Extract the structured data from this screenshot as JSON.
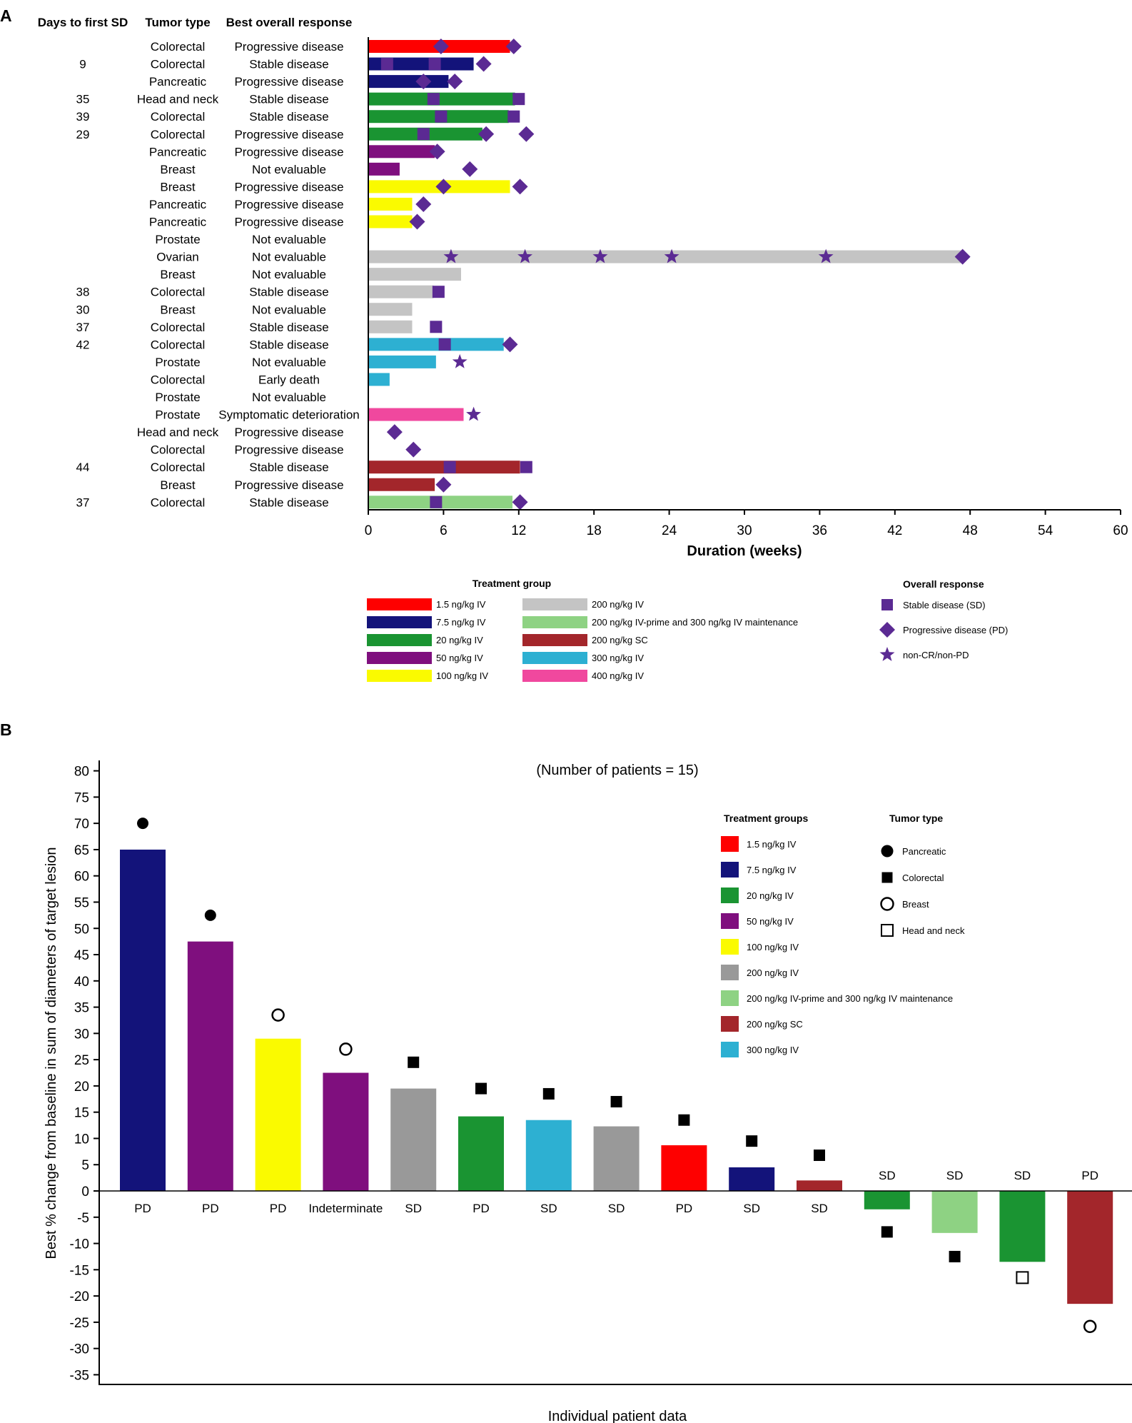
{
  "panels": {
    "a": "A",
    "b": "B"
  },
  "chart_data": [
    {
      "type": "swimmer",
      "panel": "A",
      "columns": {
        "days": "Days to first SD",
        "tumor": "Tumor type",
        "response": "Best overall response"
      },
      "xlabel": "Duration (weeks)",
      "xlim": [
        0,
        60
      ],
      "xticks": [
        "0",
        "6",
        "12",
        "18",
        "24",
        "30",
        "36",
        "42",
        "48",
        "54",
        "60"
      ],
      "patients": [
        {
          "days": "",
          "tumor": "Colorectal",
          "response": "Progressive disease",
          "dur": 11.3,
          "color": "#fe0000",
          "sd": [],
          "pd": [
            5.8,
            11.6
          ],
          "star": []
        },
        {
          "days": "9",
          "tumor": "Colorectal",
          "response": "Stable disease",
          "dur": 8.4,
          "color": "#13137a",
          "sd": [
            1.5,
            5.3
          ],
          "pd": [
            9.2
          ],
          "star": []
        },
        {
          "days": "",
          "tumor": "Pancreatic",
          "response": "Progressive disease",
          "dur": 6.4,
          "color": "#13137a",
          "sd": [],
          "pd": [
            4.4,
            6.9
          ],
          "star": []
        },
        {
          "days": "35",
          "tumor": "Head and neck",
          "response": "Stable disease",
          "dur": 11.7,
          "color": "#1a9432",
          "sd": [
            5.2,
            12.0
          ],
          "pd": [],
          "star": []
        },
        {
          "days": "39",
          "tumor": "Colorectal",
          "response": "Stable disease",
          "dur": 11.2,
          "color": "#1a9432",
          "sd": [
            5.8,
            11.6
          ],
          "pd": [],
          "star": []
        },
        {
          "days": "29",
          "tumor": "Colorectal",
          "response": "Progressive disease",
          "dur": 9.1,
          "color": "#1a9432",
          "sd": [
            4.4
          ],
          "pd": [
            9.4,
            12.6
          ],
          "star": []
        },
        {
          "days": "",
          "tumor": "Pancreatic",
          "response": "Progressive disease",
          "dur": 5.3,
          "color": "#7f0f7e",
          "sd": [],
          "pd": [
            5.5
          ],
          "star": []
        },
        {
          "days": "",
          "tumor": "Breast",
          "response": "Not evaluable",
          "dur": 2.5,
          "color": "#7f0f7e",
          "sd": [],
          "pd": [
            8.1
          ],
          "star": []
        },
        {
          "days": "",
          "tumor": "Breast",
          "response": "Progressive disease",
          "dur": 11.3,
          "color": "#fafa00",
          "sd": [],
          "pd": [
            6.0,
            12.1
          ],
          "star": []
        },
        {
          "days": "",
          "tumor": "Pancreatic",
          "response": "Progressive disease",
          "dur": 3.5,
          "color": "#fafa00",
          "sd": [],
          "pd": [
            4.4
          ],
          "star": []
        },
        {
          "days": "",
          "tumor": "Pancreatic",
          "response": "Progressive disease",
          "dur": 3.5,
          "color": "#fafa00",
          "sd": [],
          "pd": [
            3.9
          ],
          "star": []
        },
        {
          "days": "",
          "tumor": "Prostate",
          "response": "Not evaluable",
          "dur": 0,
          "color": "#c4c4c4",
          "sd": [],
          "pd": [],
          "star": []
        },
        {
          "days": "",
          "tumor": "Ovarian",
          "response": "Not evaluable",
          "dur": 47.4,
          "color": "#c4c4c4",
          "sd": [],
          "pd": [
            47.4
          ],
          "star": [
            6.6,
            12.5,
            18.5,
            24.2,
            36.5
          ]
        },
        {
          "days": "",
          "tumor": "Breast",
          "response": "Not evaluable",
          "dur": 7.4,
          "color": "#c4c4c4",
          "sd": [],
          "pd": [],
          "star": []
        },
        {
          "days": "38",
          "tumor": "Colorectal",
          "response": "Stable disease",
          "dur": 5.2,
          "color": "#c4c4c4",
          "sd": [
            5.6
          ],
          "pd": [],
          "star": []
        },
        {
          "days": "30",
          "tumor": "Breast",
          "response": "Not evaluable",
          "dur": 3.5,
          "color": "#c4c4c4",
          "sd": [],
          "pd": [],
          "star": []
        },
        {
          "days": "37",
          "tumor": "Colorectal",
          "response": "Stable disease",
          "dur": 3.5,
          "color": "#c4c4c4",
          "sd": [
            5.4
          ],
          "pd": [],
          "star": []
        },
        {
          "days": "42",
          "tumor": "Colorectal",
          "response": "Stable disease",
          "dur": 10.8,
          "color": "#2db0d2",
          "sd": [
            6.1
          ],
          "pd": [
            11.3
          ],
          "star": []
        },
        {
          "days": "",
          "tumor": "Prostate",
          "response": "Not evaluable",
          "dur": 5.4,
          "color": "#2db0d2",
          "sd": [],
          "pd": [],
          "star": [
            7.3
          ]
        },
        {
          "days": "",
          "tumor": "Colorectal",
          "response": "Early death",
          "dur": 1.7,
          "color": "#2db0d2",
          "sd": [],
          "pd": [],
          "star": []
        },
        {
          "days": "",
          "tumor": "Prostate",
          "response": "Not evaluable",
          "dur": 0,
          "color": "#c4c4c4",
          "sd": [],
          "pd": [],
          "star": []
        },
        {
          "days": "",
          "tumor": "Prostate",
          "response": "Symptomatic deterioration",
          "dur": 7.6,
          "color": "#f0489e",
          "sd": [],
          "pd": [],
          "star": [
            8.4
          ]
        },
        {
          "days": "",
          "tumor": "Head and neck",
          "response": "Progressive disease",
          "dur": 0,
          "color": "#c4c4c4",
          "sd": [],
          "pd": [
            2.1
          ],
          "star": []
        },
        {
          "days": "",
          "tumor": "Colorectal",
          "response": "Progressive disease",
          "dur": 0,
          "color": "#c4c4c4",
          "sd": [],
          "pd": [
            3.6
          ],
          "star": []
        },
        {
          "days": "44",
          "tumor": "Colorectal",
          "response": "Stable disease",
          "dur": 12.1,
          "color": "#a3262b",
          "sd": [
            6.5,
            12.6
          ],
          "pd": [],
          "star": []
        },
        {
          "days": "",
          "tumor": "Breast",
          "response": "Progressive disease",
          "dur": 5.3,
          "color": "#a3262b",
          "sd": [],
          "pd": [
            6.0
          ],
          "star": []
        },
        {
          "days": "37",
          "tumor": "Colorectal",
          "response": "Stable disease",
          "dur": 11.5,
          "color": "#8ed283",
          "sd": [
            5.4
          ],
          "pd": [
            12.1
          ],
          "star": []
        }
      ],
      "legend_treatment": {
        "title": "Treatment group",
        "items": [
          {
            "label": "1.5 ng/kg IV",
            "color": "#fe0000"
          },
          {
            "label": "7.5 ng/kg IV",
            "color": "#13137a"
          },
          {
            "label": "20 ng/kg IV",
            "color": "#1a9432"
          },
          {
            "label": "50 ng/kg IV",
            "color": "#7f0f7e"
          },
          {
            "label": "100 ng/kg IV",
            "color": "#fafa00"
          },
          {
            "label": "200 ng/kg IV",
            "color": "#c4c4c4"
          },
          {
            "label": "200 ng/kg IV-prime and 300 ng/kg IV maintenance",
            "color": "#8ed283"
          },
          {
            "label": "200 ng/kg SC",
            "color": "#a3262b"
          },
          {
            "label": "300 ng/kg IV",
            "color": "#2db0d2"
          },
          {
            "label": "400 ng/kg IV",
            "color": "#f0489e"
          }
        ]
      },
      "legend_response": {
        "title": "Overall response",
        "items": [
          {
            "label": "Stable disease (SD)",
            "marker": "square"
          },
          {
            "label": "Progressive disease (PD)",
            "marker": "diamond"
          },
          {
            "label": "non-CR/non-PD",
            "marker": "star"
          }
        ]
      },
      "marker_color": "#5b2a93"
    },
    {
      "type": "bar",
      "panel": "B",
      "title": "(Number of patients = 15)",
      "ylabel": "Best % change from baseline in sum of diameters of target lesion",
      "xlabel": "Individual patient data",
      "ylim": [
        -35,
        80
      ],
      "yticks": [
        "80",
        "75",
        "70",
        "65",
        "60",
        "55",
        "50",
        "45",
        "40",
        "35",
        "30",
        "25",
        "20",
        "15",
        "10",
        "5",
        "0",
        "-5",
        "-10",
        "-15",
        "-20",
        "-25",
        "-30",
        "-35"
      ],
      "bars": [
        {
          "value": 65,
          "label": "PD",
          "color": "#13137a",
          "tumor": "pancreatic",
          "marker_y": 70
        },
        {
          "value": 47.5,
          "label": "PD",
          "color": "#7f0f7e",
          "tumor": "pancreatic",
          "marker_y": 52.5
        },
        {
          "value": 29,
          "label": "PD",
          "color": "#fafa00",
          "tumor": "breast",
          "marker_y": 33.5
        },
        {
          "value": 22.5,
          "label": "Indeterminate",
          "color": "#7f0f7e",
          "tumor": "breast",
          "marker_y": 27
        },
        {
          "value": 19.5,
          "label": "SD",
          "color": "#999999",
          "tumor": "colorectal",
          "marker_y": 24.5
        },
        {
          "value": 14.2,
          "label": "PD",
          "color": "#1a9432",
          "tumor": "colorectal",
          "marker_y": 19.5
        },
        {
          "value": 13.5,
          "label": "SD",
          "color": "#2db0d2",
          "tumor": "colorectal",
          "marker_y": 18.5
        },
        {
          "value": 12.3,
          "label": "SD",
          "color": "#999999",
          "tumor": "colorectal",
          "marker_y": 17
        },
        {
          "value": 8.7,
          "label": "PD",
          "color": "#fe0000",
          "tumor": "colorectal",
          "marker_y": 13.5
        },
        {
          "value": 4.5,
          "label": "SD",
          "color": "#13137a",
          "tumor": "colorectal",
          "marker_y": 9.5
        },
        {
          "value": 2.0,
          "label": "SD",
          "color": "#a3262b",
          "tumor": "colorectal",
          "marker_y": 6.8
        },
        {
          "value": -3.5,
          "label": "SD",
          "color": "#1a9432",
          "tumor": "colorectal",
          "marker_y": -7.8
        },
        {
          "value": -8,
          "label": "SD",
          "color": "#8ed283",
          "tumor": "colorectal",
          "marker_y": -12.5
        },
        {
          "value": -13.5,
          "label": "SD",
          "color": "#1a9432",
          "tumor": "head_neck",
          "marker_y": -16.5
        },
        {
          "value": -21.5,
          "label": "PD",
          "color": "#a3262b",
          "tumor": "breast",
          "marker_y": -25.8
        }
      ],
      "legend_treatment": {
        "title": "Treatment groups",
        "items": [
          {
            "label": "1.5 ng/kg IV",
            "color": "#fe0000"
          },
          {
            "label": "7.5 ng/kg IV",
            "color": "#13137a"
          },
          {
            "label": "20 ng/kg IV",
            "color": "#1a9432"
          },
          {
            "label": "50 ng/kg IV",
            "color": "#7f0f7e"
          },
          {
            "label": "100 ng/kg IV",
            "color": "#fafa00"
          },
          {
            "label": "200 ng/kg IV",
            "color": "#999999"
          },
          {
            "label": "200 ng/kg IV-prime and 300 ng/kg IV maintenance",
            "color": "#8ed283"
          },
          {
            "label": "200 ng/kg SC",
            "color": "#a3262b"
          },
          {
            "label": "300 ng/kg IV",
            "color": "#2db0d2"
          }
        ]
      },
      "legend_tumor": {
        "title": "Tumor type",
        "items": [
          {
            "label": "Pancreatic",
            "marker": "pancreatic"
          },
          {
            "label": "Colorectal",
            "marker": "colorectal"
          },
          {
            "label": "Breast",
            "marker": "breast"
          },
          {
            "label": "Head and neck",
            "marker": "head_neck"
          }
        ]
      }
    }
  ]
}
